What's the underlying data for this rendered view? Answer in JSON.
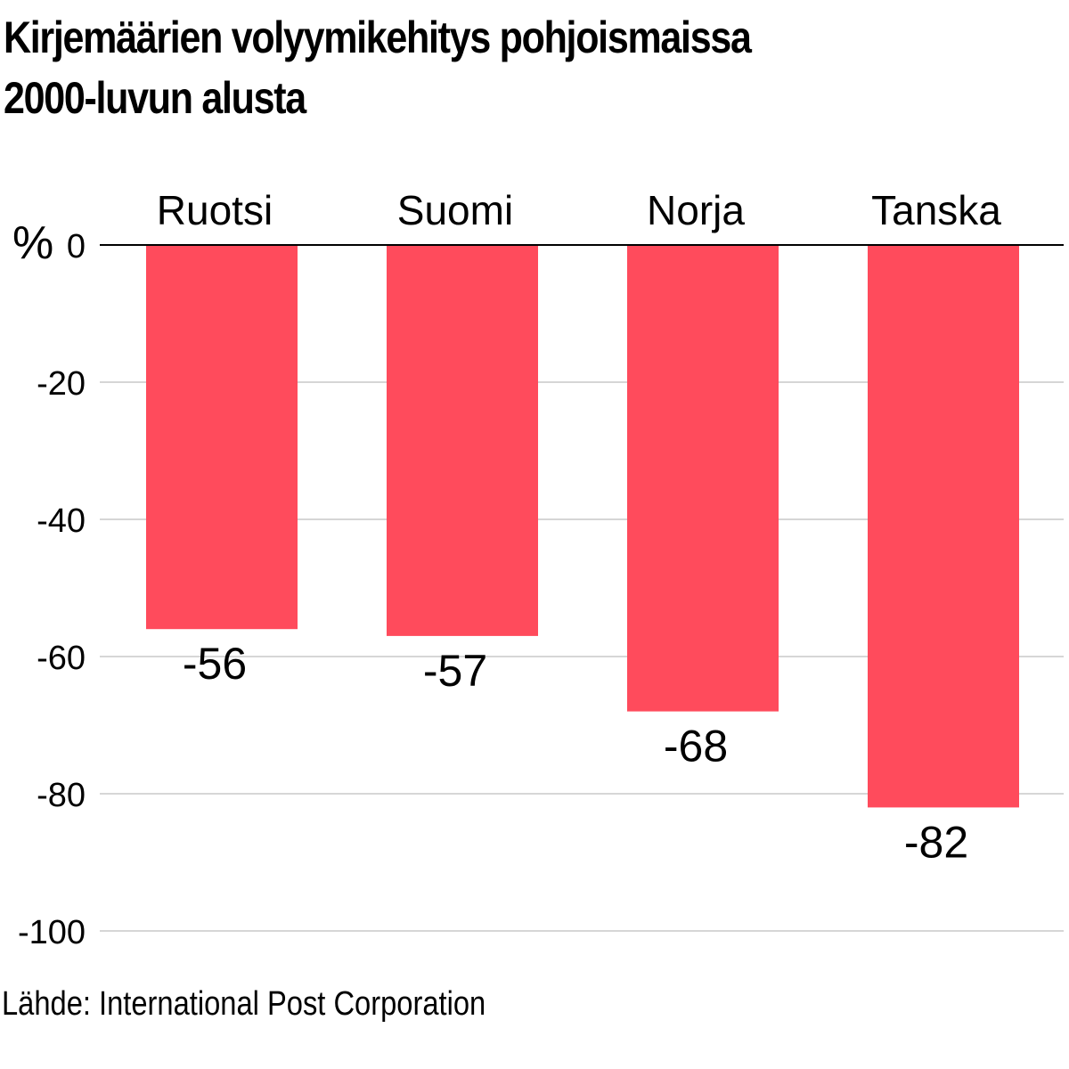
{
  "chart_data": {
    "type": "bar",
    "title_lines": [
      "Kirjemäärien volyymikehitys pohjoismaissa",
      "2000-luvun alusta"
    ],
    "unit_label": "%",
    "categories": [
      "Ruotsi",
      "Suomi",
      "Norja",
      "Tanska"
    ],
    "values": [
      -56,
      -57,
      -68,
      -82
    ],
    "data_labels": [
      "-56",
      "-57",
      "-68",
      "-82"
    ],
    "ylim": [
      -100,
      0
    ],
    "yticks": [
      0,
      -20,
      -40,
      -60,
      -80,
      -100
    ],
    "ytick_labels": [
      "0",
      "-20",
      "-40",
      "-60",
      "-80",
      "-100"
    ],
    "grid": true,
    "bar_color": "#ff4b5c",
    "grid_color": "#c8c8c8",
    "source": "Lähde: International Post Corporation"
  }
}
